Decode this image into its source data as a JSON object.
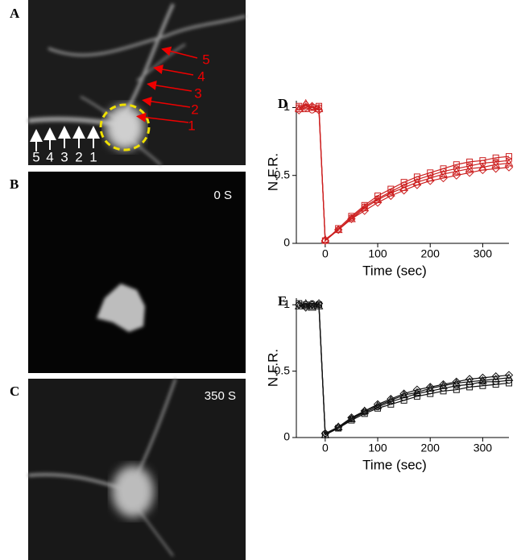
{
  "panels": [
    {
      "label": "A",
      "arrow_labels_white": [
        "5",
        "4",
        "3",
        "2",
        "1"
      ],
      "arrow_labels_red": [
        "5",
        "4",
        "3",
        "2",
        "1"
      ]
    },
    {
      "label": "B",
      "time": "0 S"
    },
    {
      "label": "C",
      "time": "350 S"
    }
  ],
  "chart_data": [
    {
      "type": "line",
      "label": "D",
      "xlabel": "Time (sec)",
      "ylabel": "N.F.R.",
      "x": [
        -50,
        -37,
        -25,
        -12,
        0,
        25,
        50,
        75,
        100,
        125,
        150,
        175,
        200,
        225,
        250,
        275,
        300,
        325,
        350
      ],
      "xlim": [
        -55,
        350
      ],
      "ylim": [
        0,
        1.05
      ],
      "xticks": [
        0,
        100,
        200,
        300
      ],
      "yticks": [
        0,
        0.5,
        1
      ],
      "series": [
        {
          "color": "#cc1f1f",
          "marker": "circle",
          "values": [
            1.0,
            1.02,
            0.98,
            1.0,
            0.02,
            0.1,
            0.19,
            0.27,
            0.33,
            0.38,
            0.43,
            0.47,
            0.5,
            0.53,
            0.55,
            0.57,
            0.59,
            0.6,
            0.61
          ]
        },
        {
          "color": "#cc1f1f",
          "marker": "triangle",
          "values": [
            0.99,
            1.03,
            1.0,
            0.99,
            0.03,
            0.1,
            0.18,
            0.26,
            0.32,
            0.37,
            0.41,
            0.45,
            0.48,
            0.51,
            0.53,
            0.55,
            0.56,
            0.58,
            0.59
          ]
        },
        {
          "color": "#cc1f1f",
          "marker": "square",
          "values": [
            1.01,
            0.99,
            1.0,
            1.01,
            0.02,
            0.11,
            0.2,
            0.28,
            0.35,
            0.4,
            0.45,
            0.49,
            0.52,
            0.55,
            0.58,
            0.6,
            0.61,
            0.63,
            0.64
          ]
        },
        {
          "color": "#cc1f1f",
          "marker": "diamond",
          "values": [
            0.98,
            1.0,
            1.01,
            0.98,
            0.02,
            0.1,
            0.18,
            0.24,
            0.3,
            0.35,
            0.39,
            0.43,
            0.46,
            0.48,
            0.5,
            0.52,
            0.54,
            0.55,
            0.56
          ]
        }
      ]
    },
    {
      "type": "line",
      "label": "E",
      "xlabel": "Time (sec)",
      "ylabel": "N.F.R.",
      "x": [
        -50,
        -37,
        -25,
        -12,
        0,
        25,
        50,
        75,
        100,
        125,
        150,
        175,
        200,
        225,
        250,
        275,
        300,
        325,
        350
      ],
      "xlim": [
        -55,
        350
      ],
      "ylim": [
        0,
        1.05
      ],
      "xticks": [
        0,
        100,
        200,
        300
      ],
      "yticks": [
        0,
        0.5,
        1
      ],
      "series": [
        {
          "color": "#111111",
          "marker": "circle",
          "values": [
            1.0,
            0.99,
            1.01,
            1.0,
            0.03,
            0.07,
            0.14,
            0.19,
            0.23,
            0.27,
            0.3,
            0.33,
            0.35,
            0.37,
            0.39,
            0.4,
            0.42,
            0.42,
            0.43
          ]
        },
        {
          "color": "#111111",
          "marker": "triangle",
          "values": [
            0.99,
            1.01,
            0.98,
            0.99,
            0.02,
            0.08,
            0.14,
            0.2,
            0.24,
            0.28,
            0.32,
            0.34,
            0.37,
            0.39,
            0.41,
            0.42,
            0.43,
            0.44,
            0.45
          ]
        },
        {
          "color": "#111111",
          "marker": "square",
          "values": [
            1.01,
            1.0,
            0.99,
            1.0,
            0.02,
            0.07,
            0.13,
            0.18,
            0.22,
            0.25,
            0.28,
            0.31,
            0.33,
            0.35,
            0.36,
            0.38,
            0.39,
            0.4,
            0.41
          ]
        },
        {
          "color": "#111111",
          "marker": "diamond",
          "values": [
            1.0,
            0.98,
            1.0,
            1.01,
            0.03,
            0.08,
            0.15,
            0.2,
            0.25,
            0.29,
            0.33,
            0.36,
            0.38,
            0.4,
            0.42,
            0.44,
            0.45,
            0.46,
            0.47
          ]
        }
      ]
    }
  ]
}
